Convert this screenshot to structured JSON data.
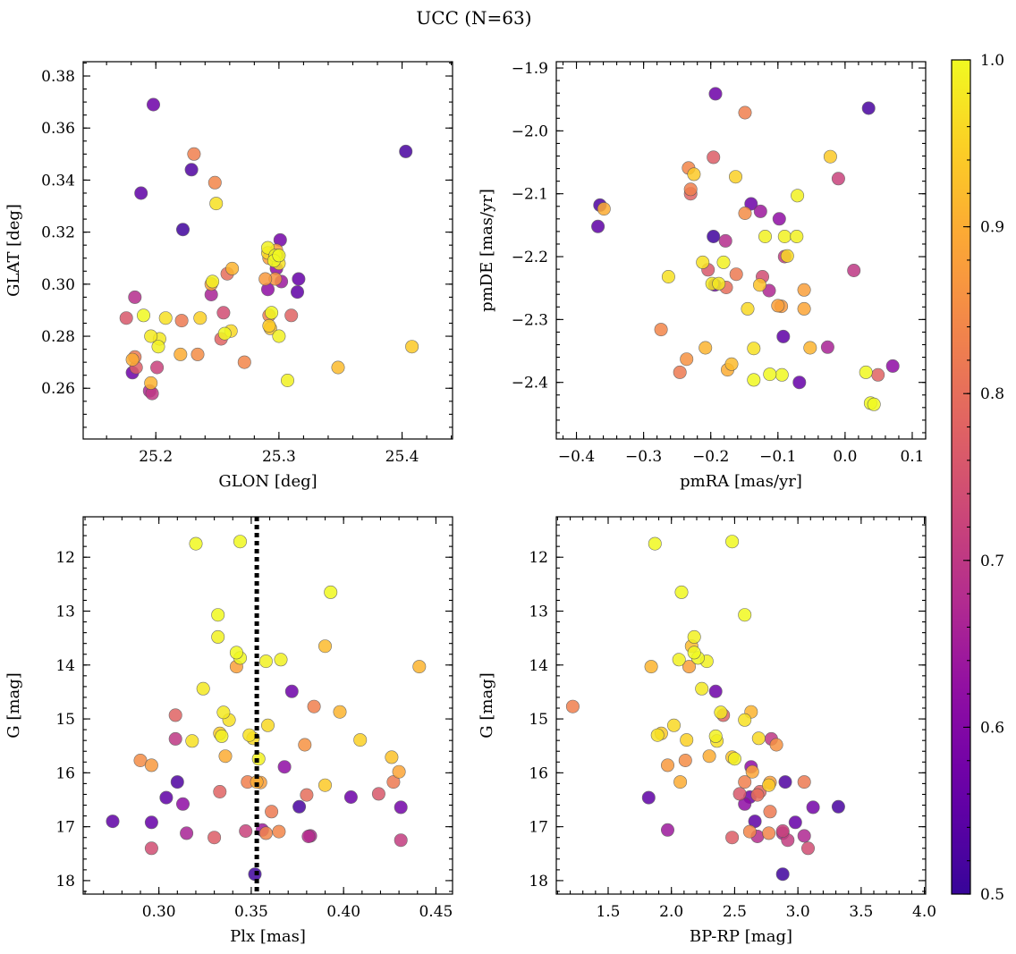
{
  "chart_data": {
    "title": "UCC (N=63)",
    "colorbar": {
      "min": 0.5,
      "max": 1.0,
      "ticks": [
        0.5,
        0.6,
        0.7,
        0.8,
        0.9,
        1.0
      ],
      "tick_labels": [
        "0.5",
        "0.6",
        "0.7",
        "0.8",
        "0.9",
        "1.0"
      ],
      "colormap": "plasma"
    },
    "stars": {
      "comment_fields": [
        "glon",
        "glat",
        "pmra",
        "pmde",
        "plx",
        "g",
        "bp_rp",
        "prob"
      ],
      "rows": [
        [
          25.198,
          0.369,
          -0.193,
          -1.941,
          0.372,
          14.49,
          2.35,
          0.57
        ],
        [
          25.403,
          0.351,
          0.035,
          -1.964,
          0.376,
          16.63,
          3.32,
          0.52
        ],
        [
          25.229,
          0.344,
          -0.365,
          -2.118,
          0.31,
          16.17,
          2.9,
          0.53
        ],
        [
          25.188,
          0.335,
          -0.368,
          -2.152,
          0.304,
          16.46,
          1.82,
          0.55
        ],
        [
          25.222,
          0.321,
          -0.196,
          -2.168,
          0.352,
          17.88,
          2.88,
          0.51
        ],
        [
          25.301,
          0.317,
          -0.194,
          -2.245,
          0.431,
          16.64,
          3.12,
          0.58
        ],
        [
          25.315,
          0.297,
          -0.092,
          -2.327,
          0.275,
          16.9,
          2.66,
          0.55
        ],
        [
          25.181,
          0.266,
          -0.14,
          -2.116,
          0.404,
          16.45,
          2.62,
          0.57
        ],
        [
          25.298,
          0.306,
          -0.098,
          -2.14,
          0.313,
          16.58,
          2.58,
          0.62
        ],
        [
          25.302,
          0.301,
          -0.126,
          -2.128,
          0.356,
          17.06,
          1.97,
          0.64
        ],
        [
          25.195,
          0.259,
          -0.113,
          -2.254,
          0.382,
          17.17,
          3.05,
          0.67
        ],
        [
          25.197,
          0.258,
          0.013,
          -2.222,
          0.309,
          15.37,
          2.79,
          0.7
        ],
        [
          25.299,
          0.311,
          -0.09,
          -2.2,
          0.431,
          17.25,
          2.92,
          0.71
        ],
        [
          25.245,
          0.296,
          -0.026,
          -2.344,
          0.315,
          17.12,
          2.88,
          0.66
        ],
        [
          25.291,
          0.298,
          0.071,
          -2.374,
          0.368,
          15.89,
          2.63,
          0.62
        ],
        [
          25.316,
          0.302,
          -0.068,
          -2.4,
          0.296,
          16.92,
          2.98,
          0.56
        ],
        [
          25.201,
          0.268,
          -0.01,
          -2.076,
          0.347,
          17.08,
          2.88,
          0.72
        ],
        [
          25.255,
          0.289,
          -0.123,
          -2.232,
          0.296,
          17.4,
          3.08,
          0.74
        ],
        [
          25.176,
          0.287,
          -0.204,
          -2.221,
          0.419,
          16.39,
          2.54,
          0.76
        ],
        [
          25.183,
          0.295,
          -0.178,
          -2.175,
          0.381,
          17.18,
          2.68,
          0.68
        ],
        [
          25.253,
          0.279,
          -0.23,
          -2.1,
          0.333,
          16.35,
          2.7,
          0.78
        ],
        [
          25.184,
          0.268,
          -0.196,
          -2.042,
          0.33,
          17.2,
          2.48,
          0.77
        ],
        [
          25.231,
          0.35,
          -0.149,
          -1.971,
          0.348,
          16.17,
          2.58,
          0.83
        ],
        [
          25.248,
          0.339,
          -0.233,
          -2.059,
          0.365,
          17.09,
          2.62,
          0.84
        ],
        [
          25.258,
          0.304,
          -0.177,
          -2.249,
          0.38,
          16.41,
          2.68,
          0.8
        ],
        [
          25.221,
          0.286,
          -0.246,
          -2.384,
          0.427,
          16.17,
          3.05,
          0.82
        ],
        [
          25.31,
          0.288,
          0.049,
          -2.388,
          0.309,
          14.93,
          2.41,
          0.78
        ],
        [
          25.183,
          0.272,
          -0.162,
          -2.228,
          0.361,
          16.72,
          2.78,
          0.82
        ],
        [
          25.292,
          0.288,
          -0.23,
          -2.093,
          0.384,
          14.77,
          1.22,
          0.83
        ],
        [
          25.234,
          0.273,
          -0.149,
          -2.131,
          0.29,
          15.77,
          2.11,
          0.85
        ],
        [
          25.272,
          0.27,
          -0.274,
          -2.316,
          0.358,
          17.12,
          2.77,
          0.84
        ],
        [
          25.289,
          0.302,
          -0.095,
          -2.279,
          0.296,
          15.86,
          1.97,
          0.87
        ],
        [
          25.292,
          0.31,
          -0.061,
          -2.253,
          0.342,
          14.03,
          2.14,
          0.88
        ],
        [
          25.297,
          0.302,
          -0.236,
          -2.363,
          0.379,
          15.48,
          2.83,
          0.86
        ],
        [
          25.181,
          0.271,
          -0.175,
          -2.38,
          0.353,
          16.17,
          2.07,
          0.9
        ],
        [
          25.22,
          0.273,
          -0.359,
          -2.124,
          0.336,
          15.69,
          2.3,
          0.9
        ],
        [
          25.196,
          0.262,
          -0.208,
          -2.345,
          0.398,
          14.87,
          2.63,
          0.91
        ],
        [
          25.245,
          0.3,
          -0.061,
          -2.283,
          0.43,
          15.98,
          2.64,
          0.89
        ],
        [
          25.298,
          0.313,
          -0.1,
          -2.278,
          0.355,
          16.18,
          2.78,
          0.88
        ],
        [
          25.262,
          0.306,
          -0.052,
          -2.345,
          0.441,
          14.03,
          1.84,
          0.91
        ],
        [
          25.348,
          0.268,
          -0.169,
          -2.371,
          0.39,
          13.65,
          2.16,
          0.92
        ],
        [
          25.293,
          0.283,
          -0.127,
          -2.245,
          0.426,
          15.71,
          2.48,
          0.93
        ],
        [
          25.408,
          0.276,
          -0.022,
          -2.041,
          0.333,
          15.27,
          1.92,
          0.94
        ],
        [
          25.236,
          0.287,
          -0.163,
          -2.073,
          0.409,
          15.39,
          2.12,
          0.95
        ],
        [
          25.292,
          0.284,
          -0.225,
          -2.069,
          0.39,
          16.23,
          2.77,
          0.94
        ],
        [
          25.261,
          0.282,
          -0.145,
          -2.283,
          0.359,
          15.12,
          2.02,
          0.96
        ],
        [
          25.3,
          0.308,
          -0.136,
          -2.346,
          0.318,
          15.41,
          2.36,
          0.97
        ],
        [
          25.208,
          0.287,
          -0.263,
          -2.232,
          0.338,
          15.02,
          2.58,
          0.97
        ],
        [
          25.291,
          0.312,
          -0.086,
          -2.199,
          0.351,
          15.36,
          2.69,
          0.96
        ],
        [
          25.249,
          0.331,
          -0.212,
          -2.209,
          0.349,
          15.3,
          1.89,
          0.97
        ],
        [
          25.203,
          0.279,
          -0.198,
          -2.243,
          0.335,
          14.88,
          2.39,
          0.98
        ],
        [
          25.196,
          0.28,
          -0.188,
          -2.243,
          0.324,
          14.44,
          2.24,
          0.98
        ],
        [
          25.202,
          0.276,
          -0.09,
          -2.168,
          0.366,
          13.9,
          2.06,
          0.99
        ],
        [
          25.246,
          0.301,
          -0.119,
          -2.168,
          0.332,
          13.48,
          2.18,
          0.99
        ],
        [
          25.291,
          0.314,
          -0.071,
          -2.103,
          0.358,
          13.93,
          2.28,
          0.99
        ],
        [
          25.307,
          0.263,
          -0.072,
          -2.168,
          0.354,
          15.74,
          2.5,
          0.99
        ],
        [
          25.3,
          0.28,
          -0.181,
          -2.209,
          0.334,
          15.32,
          2.35,
          0.99
        ],
        [
          25.19,
          0.288,
          0.031,
          -2.384,
          0.344,
          13.87,
          2.21,
          1.0
        ],
        [
          25.256,
          0.281,
          0.038,
          -2.433,
          0.342,
          13.77,
          2.18,
          1.0
        ],
        [
          25.294,
          0.289,
          0.043,
          -2.435,
          0.393,
          12.65,
          2.08,
          1.0
        ],
        [
          25.297,
          0.311,
          -0.094,
          -2.388,
          0.332,
          13.07,
          2.58,
          1.0
        ],
        [
          25.296,
          0.309,
          -0.136,
          -2.396,
          0.344,
          11.71,
          2.48,
          1.0
        ],
        [
          25.3,
          0.311,
          -0.112,
          -2.387,
          0.32,
          11.75,
          1.87,
          1.0
        ]
      ]
    },
    "panels": [
      {
        "id": "glon-glat",
        "type": "scatter",
        "x_field": 0,
        "y_field": 1,
        "xlabel": "GLON [deg]",
        "ylabel": "GLAT [deg]",
        "xlim": [
          25.141,
          25.441
        ],
        "ylim": [
          0.2405,
          0.3855
        ],
        "y_inverted": false,
        "xticks": [
          25.2,
          25.3,
          25.4
        ],
        "xtick_labels": [
          "25.2",
          "25.3",
          "25.4"
        ],
        "xminor": 0.02,
        "yticks": [
          0.26,
          0.28,
          0.3,
          0.32,
          0.34,
          0.36,
          0.38
        ],
        "ytick_labels": [
          "0.26",
          "0.28",
          "0.30",
          "0.32",
          "0.34",
          "0.36",
          "0.38"
        ],
        "yminor": 0.005
      },
      {
        "id": "pmra-pmde",
        "type": "scatter",
        "x_field": 2,
        "y_field": 3,
        "xlabel": "pmRA [mas/yr]",
        "ylabel": "pmDE [mas/yr]",
        "xlim": [
          -0.43,
          0.12
        ],
        "ylim": [
          -2.49,
          -1.89
        ],
        "y_inverted": false,
        "xticks": [
          -0.4,
          -0.3,
          -0.2,
          -0.1,
          0.0,
          0.1
        ],
        "xtick_labels": [
          "−0.4",
          "−0.3",
          "−0.2",
          "−0.1",
          "0.0",
          "0.1"
        ],
        "xminor": 0.02,
        "yticks": [
          -2.4,
          -2.3,
          -2.2,
          -2.1,
          -2.0,
          -1.9
        ],
        "ytick_labels": [
          "−2.4",
          "−2.3",
          "−2.2",
          "−2.1",
          "−2.0",
          "−1.9"
        ],
        "yminor": 0.02
      },
      {
        "id": "plx-g",
        "type": "scatter",
        "x_field": 4,
        "y_field": 5,
        "xlabel": "Plx [mas]",
        "ylabel": "G [mag]",
        "xlim": [
          0.259,
          0.459
        ],
        "ylim": [
          11.25,
          18.25
        ],
        "y_inverted": true,
        "xticks": [
          0.3,
          0.35,
          0.4,
          0.45
        ],
        "xtick_labels": [
          "0.30",
          "0.35",
          "0.40",
          "0.45"
        ],
        "xminor": 0.01,
        "yticks": [
          12,
          13,
          14,
          15,
          16,
          17,
          18
        ],
        "ytick_labels": [
          "12",
          "13",
          "14",
          "15",
          "16",
          "17",
          "18"
        ],
        "yminor": 0.2,
        "vline": 0.353
      },
      {
        "id": "bprp-g",
        "type": "scatter",
        "x_field": 6,
        "y_field": 5,
        "xlabel": "BP-RP [mag]",
        "ylabel": "G [mag]",
        "xlim": [
          1.09,
          4.01
        ],
        "ylim": [
          11.25,
          18.25
        ],
        "y_inverted": true,
        "xticks": [
          1.5,
          2.0,
          2.5,
          3.0,
          3.5,
          4.0
        ],
        "xtick_labels": [
          "1.5",
          "2.0",
          "2.5",
          "3.0",
          "3.5",
          "4.0"
        ],
        "xminor": 0.1,
        "yticks": [
          12,
          13,
          14,
          15,
          16,
          17,
          18
        ],
        "ytick_labels": [
          "12",
          "13",
          "14",
          "15",
          "16",
          "17",
          "18"
        ],
        "yminor": 0.2
      }
    ]
  }
}
